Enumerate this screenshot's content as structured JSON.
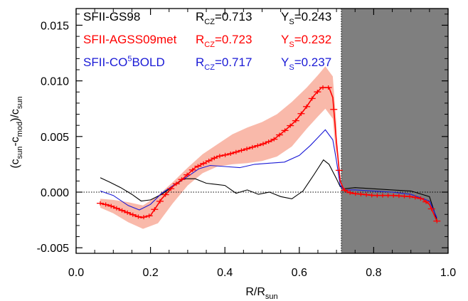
{
  "chart_data": {
    "type": "line",
    "xlabel": "R/R",
    "xlabel_sub": "sun",
    "ylabel_parts": [
      "(c",
      "sun",
      "-c",
      "mod",
      ")/c",
      "sun"
    ],
    "xlim": [
      0.0,
      1.0
    ],
    "ylim": [
      -0.0055,
      0.0165
    ],
    "xticks": [
      0.0,
      0.2,
      0.4,
      0.6,
      0.8,
      1.0
    ],
    "xtick_labels": [
      "0.0",
      "0.2",
      "0.4",
      "0.6",
      "0.8",
      "1.0"
    ],
    "yticks": [
      -0.005,
      0.0,
      0.005,
      0.01,
      0.015
    ],
    "ytick_labels": [
      "-0.005",
      "0.000",
      "0.005",
      "0.010",
      "0.015"
    ],
    "zero_line": 0.0,
    "convective_zone_boundary": 0.713,
    "shade_color": "#7f7f7f",
    "legend": [
      {
        "name": "SFII-GS98",
        "rcz_label": "R",
        "rcz_sub": "CZ",
        "rcz_value": "=0.713",
        "ys_label": "Y",
        "ys_sub": "S",
        "ys_value": "=0.243",
        "color": "#000000"
      },
      {
        "name": "SFII-AGSS09met",
        "rcz_label": "R",
        "rcz_sub": "CZ",
        "rcz_value": "=0.723",
        "ys_label": "Y",
        "ys_sub": "S",
        "ys_value": "=0.232",
        "color": "#ff0000"
      },
      {
        "name_pre": "SFII-CO",
        "name_sup": "5",
        "name_post": "BOLD",
        "rcz_label": "R",
        "rcz_sub": "CZ",
        "rcz_value": "=0.717",
        "ys_label": "Y",
        "ys_sub": "S",
        "ys_value": "=0.237",
        "color": "#1a1ad6"
      }
    ],
    "series": [
      {
        "color": "#000000",
        "x": [
          0.065,
          0.09,
          0.12,
          0.15,
          0.175,
          0.2,
          0.23,
          0.26,
          0.29,
          0.32,
          0.35,
          0.375,
          0.4,
          0.43,
          0.46,
          0.49,
          0.52,
          0.55,
          0.58,
          0.61,
          0.64,
          0.665,
          0.68,
          0.7,
          0.71,
          0.72,
          0.75,
          0.8,
          0.85,
          0.9,
          0.95,
          0.97
        ],
        "y": [
          0.0013,
          0.0009,
          0.0004,
          -0.0002,
          -0.0008,
          -0.0007,
          -0.0002,
          0.0005,
          0.0012,
          0.0012,
          0.0008,
          0.0007,
          0.0006,
          -0.0001,
          0.0002,
          -0.0002,
          0.0,
          -0.0004,
          -0.0006,
          0.0001,
          0.0016,
          0.0029,
          0.0025,
          0.0012,
          0.0005,
          0.0003,
          0.0004,
          0.0003,
          0.0002,
          0.0001,
          -0.0004,
          -0.0025
        ]
      },
      {
        "color": "#1a1ad6",
        "x": [
          0.065,
          0.1,
          0.14,
          0.17,
          0.2,
          0.23,
          0.27,
          0.3,
          0.33,
          0.36,
          0.4,
          0.44,
          0.48,
          0.52,
          0.56,
          0.6,
          0.63,
          0.65,
          0.67,
          0.69,
          0.7,
          0.71,
          0.72,
          0.75,
          0.8,
          0.85,
          0.9,
          0.95,
          0.97
        ],
        "y": [
          0.0001,
          -0.0003,
          -0.0012,
          -0.0016,
          -0.0011,
          -0.0001,
          0.0008,
          0.0014,
          0.0021,
          0.0024,
          0.0023,
          0.0022,
          0.0025,
          0.0026,
          0.0027,
          0.0033,
          0.0042,
          0.0049,
          0.0056,
          0.0047,
          0.0028,
          0.0006,
          0.0002,
          0.0002,
          0.0001,
          0.0,
          -0.0002,
          -0.0008,
          -0.0023
        ]
      },
      {
        "color": "#ff0000",
        "x": [
          0.065,
          0.09,
          0.12,
          0.15,
          0.175,
          0.2,
          0.23,
          0.26,
          0.29,
          0.32,
          0.35,
          0.38,
          0.41,
          0.44,
          0.47,
          0.5,
          0.53,
          0.56,
          0.59,
          0.62,
          0.64,
          0.66,
          0.68,
          0.69,
          0.7,
          0.71,
          0.72,
          0.74,
          0.77,
          0.8,
          0.85,
          0.9,
          0.93,
          0.95,
          0.97
        ],
        "y": [
          -0.001,
          -0.0012,
          -0.0016,
          -0.002,
          -0.0023,
          -0.0021,
          -0.0006,
          0.0005,
          0.0013,
          0.0022,
          0.0027,
          0.0032,
          0.0034,
          0.0037,
          0.004,
          0.0043,
          0.0047,
          0.0055,
          0.0064,
          0.0077,
          0.0087,
          0.0094,
          0.0094,
          0.0085,
          0.0045,
          0.001,
          0.0002,
          -0.0001,
          -0.0002,
          -0.0003,
          -0.0003,
          -0.0004,
          -0.0006,
          -0.0011,
          -0.0026
        ]
      }
    ],
    "band": {
      "color": "#f9b9aa",
      "x": [
        0.065,
        0.1,
        0.14,
        0.18,
        0.22,
        0.26,
        0.3,
        0.34,
        0.38,
        0.42,
        0.46,
        0.5,
        0.54,
        0.58,
        0.62,
        0.65,
        0.67,
        0.69,
        0.7
      ],
      "upper": [
        -0.0006,
        -0.0007,
        -0.0009,
        -0.0012,
        -0.0003,
        0.0009,
        0.0022,
        0.0034,
        0.0043,
        0.0052,
        0.0058,
        0.0063,
        0.007,
        0.0081,
        0.0094,
        0.0105,
        0.0113,
        0.0104,
        0.006
      ],
      "lower": [
        -0.0014,
        -0.0019,
        -0.0027,
        -0.0033,
        -0.0028,
        -0.001,
        0.0006,
        0.0017,
        0.0023,
        0.0025,
        0.0026,
        0.0028,
        0.0032,
        0.0041,
        0.0057,
        0.0068,
        0.0075,
        0.0066,
        0.003
      ]
    }
  }
}
